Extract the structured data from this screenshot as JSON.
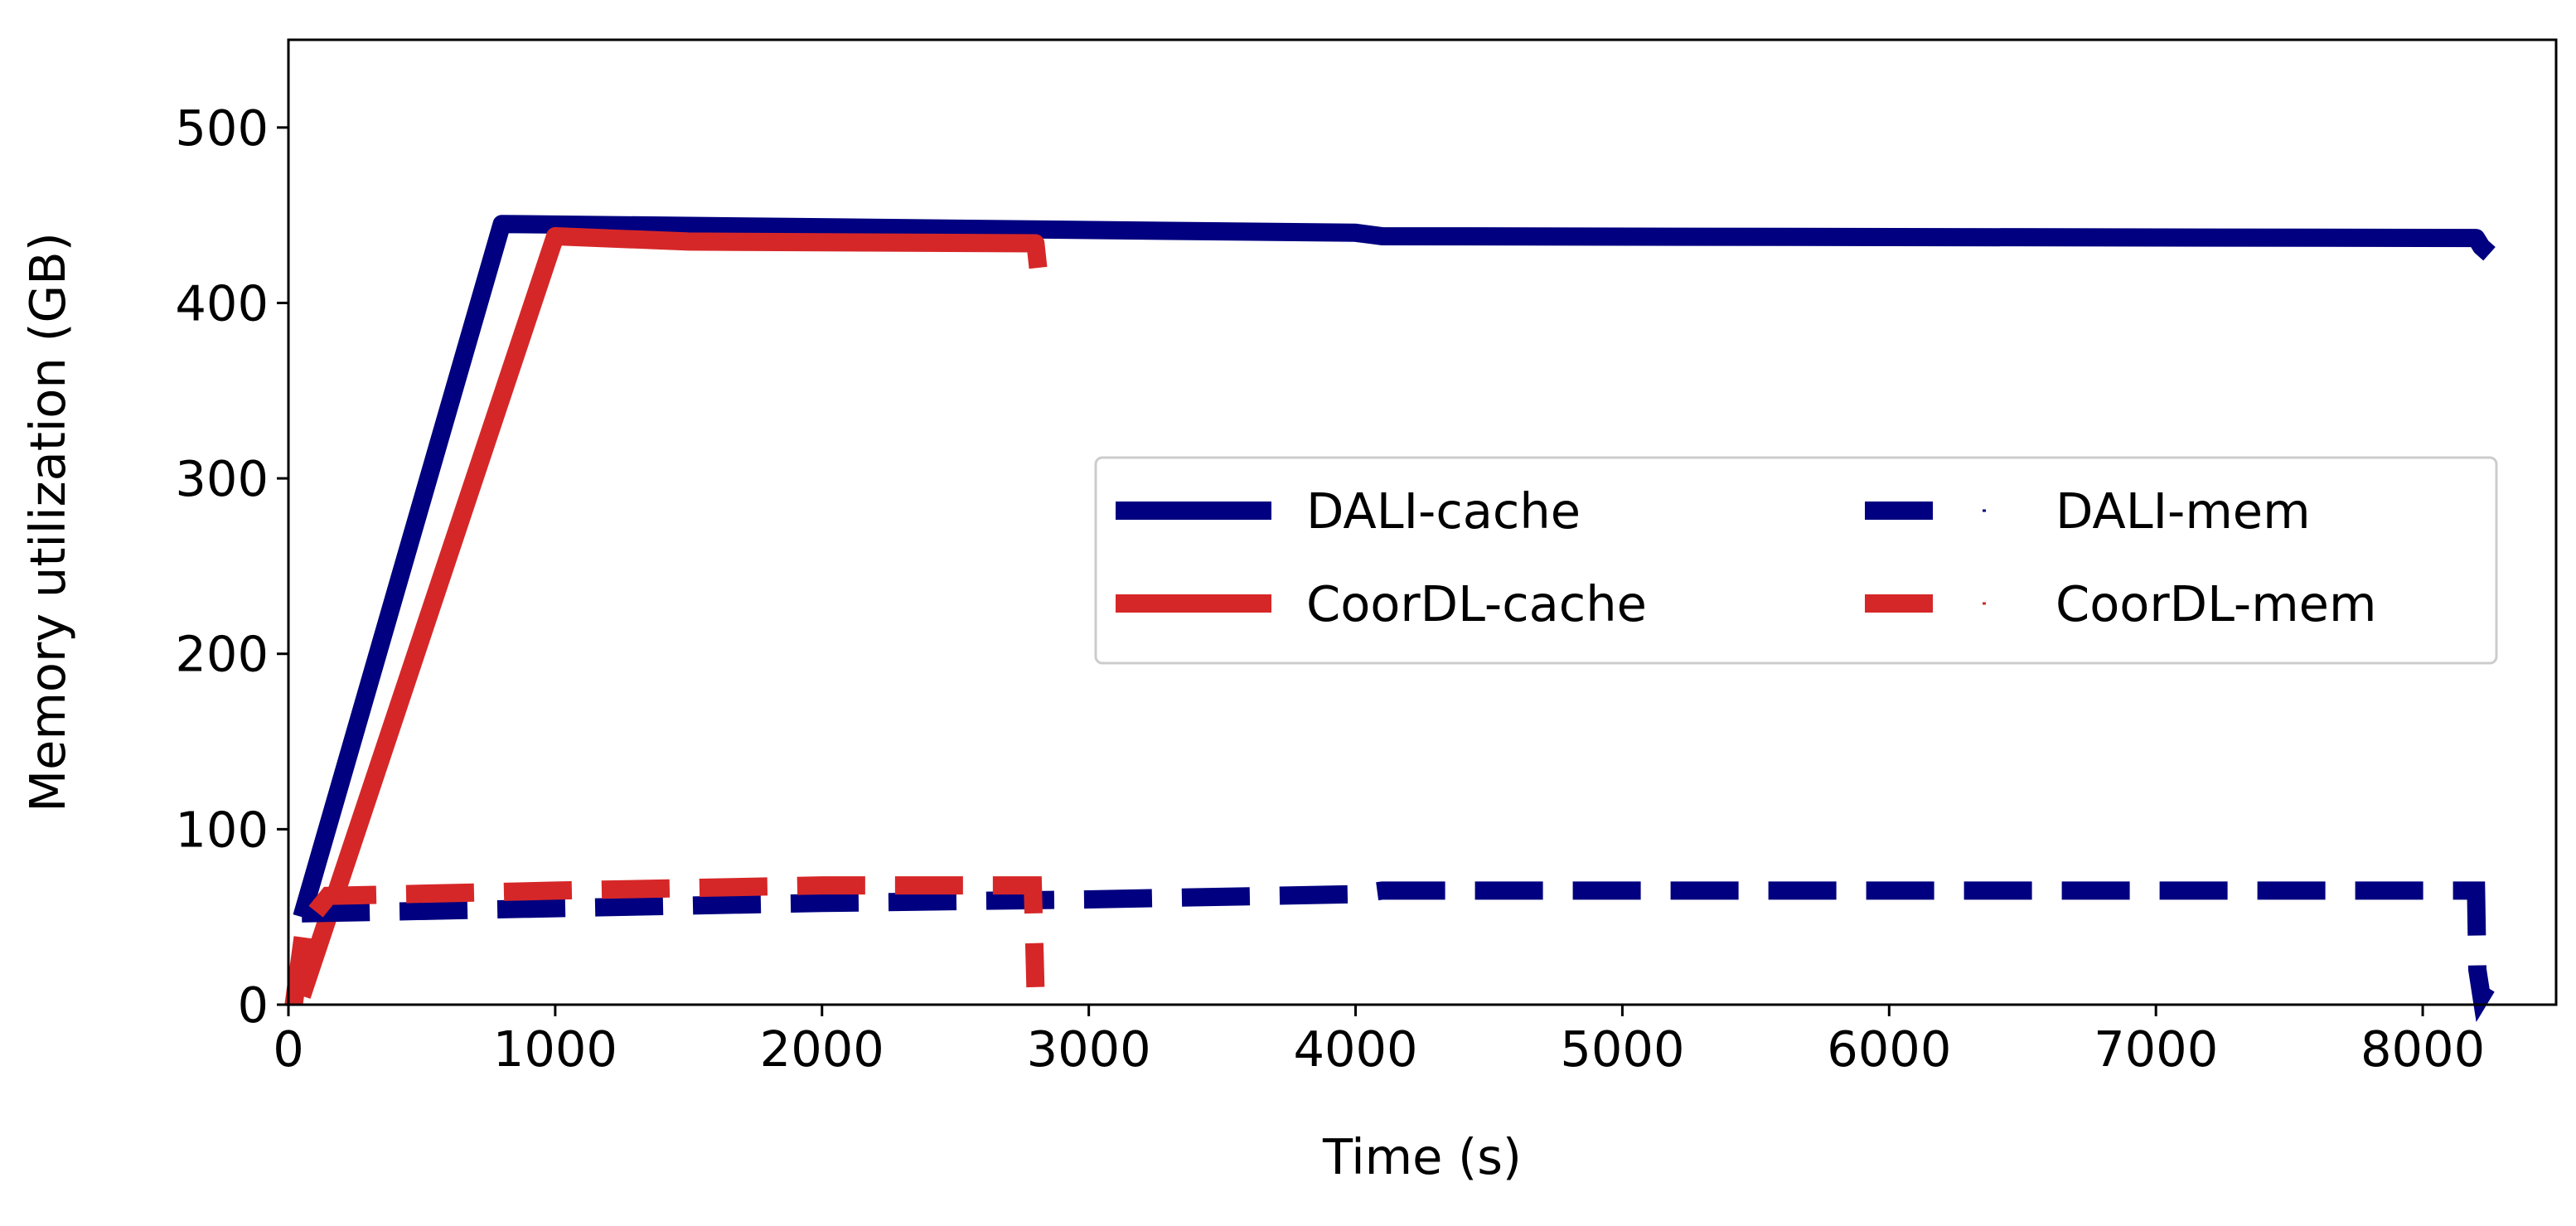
{
  "chart_data": {
    "type": "line",
    "title": "",
    "xlabel": "Time (s)",
    "ylabel": "Memory utilization (GB)",
    "xlim": [
      0,
      8500
    ],
    "ylim": [
      0,
      550
    ],
    "xticks": [
      0,
      1000,
      2000,
      3000,
      4000,
      5000,
      6000,
      7000,
      8000
    ],
    "yticks": [
      0,
      100,
      200,
      300,
      400,
      500
    ],
    "grid": false,
    "legend": {
      "placement": "center-right",
      "columns": 2
    },
    "series": [
      {
        "name": "DALI-cache",
        "color": "#000080",
        "style": "solid",
        "points": [
          [
            50,
            50
          ],
          [
            800,
            445
          ],
          [
            4000,
            440
          ],
          [
            4100,
            438
          ],
          [
            8200,
            437
          ],
          [
            8220,
            432
          ],
          [
            8250,
            428
          ]
        ]
      },
      {
        "name": "CoorDL-cache",
        "color": "#d62728",
        "style": "solid",
        "points": [
          [
            50,
            5
          ],
          [
            1000,
            438
          ],
          [
            1500,
            435
          ],
          [
            2800,
            434
          ],
          [
            2810,
            420
          ]
        ]
      },
      {
        "name": "DALI-mem",
        "color": "#000080",
        "style": "dashed",
        "points": [
          [
            50,
            52
          ],
          [
            1000,
            55
          ],
          [
            2000,
            58
          ],
          [
            3000,
            60
          ],
          [
            4000,
            63
          ],
          [
            4100,
            65
          ],
          [
            8200,
            65
          ],
          [
            8205,
            20
          ],
          [
            8220,
            5
          ],
          [
            8240,
            10
          ]
        ]
      },
      {
        "name": "CoorDL-mem",
        "color": "#d62728",
        "style": "dashed",
        "points": [
          [
            20,
            0
          ],
          [
            60,
            45
          ],
          [
            150,
            62
          ],
          [
            1000,
            65
          ],
          [
            2000,
            68
          ],
          [
            2790,
            68
          ],
          [
            2800,
            10
          ]
        ]
      }
    ]
  }
}
